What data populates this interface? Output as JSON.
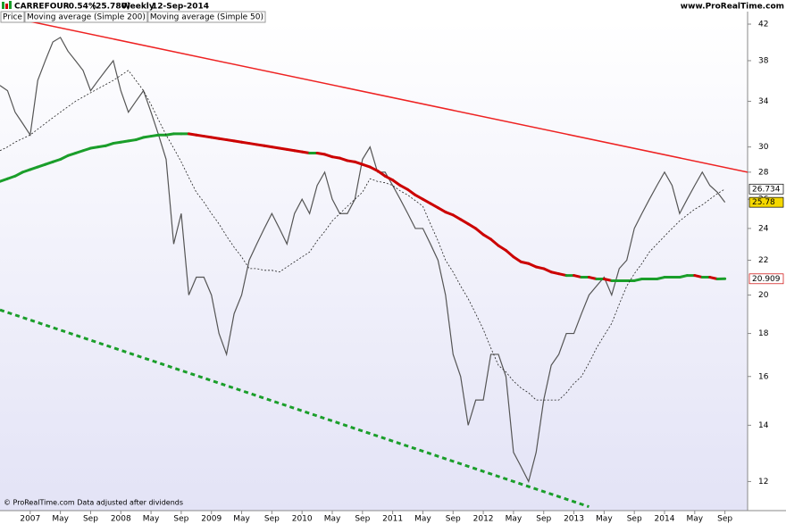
{
  "chart_data": {
    "type": "line",
    "symbol": "CARREFOUR",
    "change": "-0.54%",
    "last": "(25.780)",
    "period": "Weekly",
    "date": "12-Sep-2014",
    "source": "www.ProRealTime.com",
    "footer": "© ProRealTime.com Data adjusted after dividends",
    "log_scale": true,
    "grid": false,
    "x": [
      "2006-09",
      "2006-10",
      "2006-11",
      "2006-12",
      "2007-01",
      "2007-02",
      "2007-03",
      "2007-04",
      "2007-05",
      "2007-06",
      "2007-07",
      "2007-08",
      "2007-09",
      "2007-10",
      "2007-11",
      "2007-12",
      "2008-01",
      "2008-02",
      "2008-03",
      "2008-04",
      "2008-05",
      "2008-06",
      "2008-07",
      "2008-08",
      "2008-09",
      "2008-10",
      "2008-11",
      "2008-12",
      "2009-01",
      "2009-02",
      "2009-03",
      "2009-04",
      "2009-05",
      "2009-06",
      "2009-07",
      "2009-08",
      "2009-09",
      "2009-10",
      "2009-11",
      "2009-12",
      "2010-01",
      "2010-02",
      "2010-03",
      "2010-04",
      "2010-05",
      "2010-06",
      "2010-07",
      "2010-08",
      "2010-09",
      "2010-10",
      "2010-11",
      "2010-12",
      "2011-01",
      "2011-02",
      "2011-03",
      "2011-04",
      "2011-05",
      "2011-06",
      "2011-07",
      "2011-08",
      "2011-09",
      "2011-10",
      "2011-11",
      "2011-12",
      "2012-01",
      "2012-02",
      "2012-03",
      "2012-04",
      "2012-05",
      "2012-06",
      "2012-07",
      "2012-08",
      "2012-09",
      "2012-10",
      "2012-11",
      "2012-12",
      "2013-01",
      "2013-02",
      "2013-03",
      "2013-04",
      "2013-05",
      "2013-06",
      "2013-07",
      "2013-08",
      "2013-09",
      "2013-10",
      "2013-11",
      "2013-12",
      "2014-01",
      "2014-02",
      "2014-03",
      "2014-04",
      "2014-05",
      "2014-06",
      "2014-07",
      "2014-08",
      "2014-09"
    ],
    "series": [
      {
        "name": "Price",
        "color": "#555555",
        "values": [
          35.5,
          35,
          33,
          32,
          31,
          36,
          38,
          40,
          40.5,
          39,
          38,
          37,
          35,
          36,
          37,
          38,
          35,
          33,
          34,
          35,
          33,
          31,
          29,
          23,
          25,
          20,
          21,
          21,
          20,
          18,
          17,
          19,
          20,
          22,
          23,
          24,
          25,
          24,
          23,
          25,
          26,
          25,
          27,
          28,
          26,
          25,
          25,
          26,
          29,
          30,
          28,
          28,
          27,
          26,
          25,
          24,
          24,
          23,
          22,
          20,
          17,
          16,
          14,
          15,
          15,
          17,
          17,
          16,
          13,
          12.5,
          12,
          13,
          15,
          16.5,
          17,
          18,
          18,
          19,
          20,
          20.5,
          21,
          20,
          21.5,
          22,
          24,
          25,
          26,
          27,
          28,
          27,
          25,
          26,
          27,
          28,
          27,
          26.5,
          25.78
        ],
        "tag_color": "#f5d800"
      },
      {
        "name": "Moving average (Simple 200)",
        "color": "#cc0000",
        "up_color": "#1a9e2a",
        "values": [
          27.3,
          27.5,
          27.7,
          28.0,
          28.2,
          28.4,
          28.6,
          28.8,
          29.0,
          29.3,
          29.5,
          29.7,
          29.9,
          30.0,
          30.1,
          30.3,
          30.4,
          30.5,
          30.6,
          30.8,
          30.9,
          31.0,
          31.0,
          31.1,
          31.1,
          31.1,
          31.0,
          30.9,
          30.8,
          30.7,
          30.6,
          30.5,
          30.4,
          30.3,
          30.2,
          30.1,
          30.0,
          29.9,
          29.8,
          29.7,
          29.6,
          29.5,
          29.5,
          29.4,
          29.2,
          29.1,
          28.9,
          28.8,
          28.6,
          28.4,
          28.1,
          27.7,
          27.4,
          27.0,
          26.7,
          26.3,
          26.0,
          25.7,
          25.4,
          25.1,
          24.9,
          24.6,
          24.3,
          24.0,
          23.6,
          23.3,
          22.9,
          22.6,
          22.2,
          21.9,
          21.8,
          21.6,
          21.5,
          21.3,
          21.2,
          21.1,
          21.1,
          21.0,
          21.0,
          20.9,
          20.9,
          20.8,
          20.8,
          20.8,
          20.8,
          20.9,
          20.9,
          20.9,
          21.0,
          21.0,
          21.0,
          21.1,
          21.1,
          21.0,
          21.0,
          20.9,
          20.909
        ],
        "tag_color": "#ffffff"
      },
      {
        "name": "Moving average (Simple 50)",
        "color": "#222222",
        "dashed": true,
        "values": [
          29.7,
          30.0,
          30.4,
          30.7,
          31.0,
          31.5,
          32.0,
          32.5,
          33.0,
          33.5,
          34.0,
          34.4,
          34.8,
          35.2,
          35.6,
          36.0,
          36.5,
          37.0,
          36.0,
          35.0,
          33.7,
          32.3,
          31.0,
          29.9,
          28.8,
          27.6,
          26.5,
          25.8,
          25.0,
          24.3,
          23.5,
          22.8,
          22.2,
          21.5,
          21.5,
          21.4,
          21.4,
          21.3,
          21.6,
          21.9,
          22.2,
          22.5,
          23.2,
          23.8,
          24.5,
          25.0,
          25.5,
          26.0,
          26.5,
          27.5,
          27.3,
          27.2,
          27.0,
          26.6,
          26.3,
          25.9,
          25.5,
          24.3,
          23.2,
          22.0,
          21.3,
          20.5,
          19.8,
          19.0,
          18.2,
          17.3,
          16.5,
          16.2,
          15.8,
          15.5,
          15.3,
          15.0,
          15.0,
          15.0,
          15.0,
          15.3,
          15.7,
          16.0,
          16.6,
          17.3,
          17.9,
          18.5,
          19.5,
          20.5,
          21.2,
          21.8,
          22.5,
          23.0,
          23.5,
          24.0,
          24.5,
          24.9,
          25.3,
          25.6,
          26.0,
          26.4,
          26.734
        ],
        "tag_color": "#ffffff"
      }
    ],
    "trendlines": [
      {
        "x": [
          "2007-01",
          "2014-12"
        ],
        "values": [
          42.3,
          28.0
        ],
        "color": "#ee2222",
        "dashed": false
      },
      {
        "x": [
          "2006-09",
          "2013-03"
        ],
        "values": [
          19.2,
          11.2
        ],
        "color": "#1a9e2a",
        "dashed": true
      }
    ],
    "xlim": [
      "2006-09",
      "2014-12"
    ],
    "xticks": [
      {
        "value": "2007-01",
        "label": "2007"
      },
      {
        "value": "2007-05",
        "label": "May"
      },
      {
        "value": "2007-09",
        "label": "Sep"
      },
      {
        "value": "2008-01",
        "label": "2008"
      },
      {
        "value": "2008-05",
        "label": "May"
      },
      {
        "value": "2008-09",
        "label": "Sep"
      },
      {
        "value": "2009-01",
        "label": "2009"
      },
      {
        "value": "2009-05",
        "label": "May"
      },
      {
        "value": "2009-09",
        "label": "Sep"
      },
      {
        "value": "2010-01",
        "label": "2010"
      },
      {
        "value": "2010-05",
        "label": "May"
      },
      {
        "value": "2010-09",
        "label": "Sep"
      },
      {
        "value": "2011-01",
        "label": "2011"
      },
      {
        "value": "2011-05",
        "label": "May"
      },
      {
        "value": "2011-09",
        "label": "Sep"
      },
      {
        "value": "2012-01",
        "label": "2012"
      },
      {
        "value": "2012-05",
        "label": "May"
      },
      {
        "value": "2012-09",
        "label": "Sep"
      },
      {
        "value": "2013-01",
        "label": "2013"
      },
      {
        "value": "2013-05",
        "label": "May"
      },
      {
        "value": "2013-09",
        "label": "Sep"
      },
      {
        "value": "2014-01",
        "label": "2014"
      },
      {
        "value": "2014-05",
        "label": "May"
      },
      {
        "value": "2014-09",
        "label": "Sep"
      }
    ],
    "ylim": [
      11.19,
      44
    ],
    "yticks": [
      12,
      14,
      16,
      18,
      20,
      22,
      24,
      26,
      28,
      30,
      34,
      38,
      42
    ]
  }
}
